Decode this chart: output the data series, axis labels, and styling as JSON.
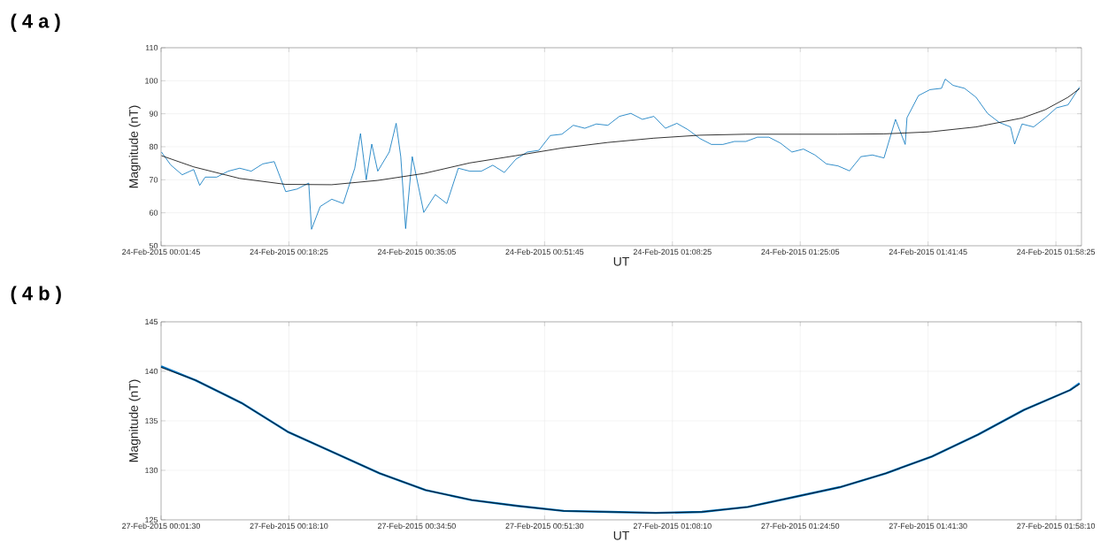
{
  "chart_data": [
    {
      "type": "line",
      "title": "( 4 a )",
      "xlabel": "UT",
      "ylabel": "Magnitude (nT)",
      "xlim": [
        "2015-02-24T00:01:45",
        "2015-02-24T02:01:45"
      ],
      "ylim": [
        50,
        110
      ],
      "grid": true,
      "xticks": [
        {
          "value": "2015-02-24T00:01:45",
          "label": "24-Feb-2015 00:01:45"
        },
        {
          "value": "2015-02-24T00:18:25",
          "label": "24-Feb-2015 00:18:25"
        },
        {
          "value": "2015-02-24T00:35:05",
          "label": "24-Feb-2015 00:35:05"
        },
        {
          "value": "2015-02-24T00:51:45",
          "label": "24-Feb-2015 00:51:45"
        },
        {
          "value": "2015-02-24T01:08:25",
          "label": "24-Feb-2015 01:08:25"
        },
        {
          "value": "2015-02-24T01:25:05",
          "label": "24-Feb-2015 01:25:05"
        },
        {
          "value": "2015-02-24T01:41:45",
          "label": "24-Feb-2015 01:41:45"
        },
        {
          "value": "2015-02-24T01:58:25",
          "label": "24-Feb-2015 01:58:25"
        }
      ],
      "yticks": [
        50,
        60,
        70,
        80,
        90,
        100,
        110
      ],
      "series": [
        {
          "color": "#0072bd",
          "x": [
            "2015-02-24T00:01:48",
            "2015-02-24T00:03:00",
            "2015-02-24T00:04:30",
            "2015-02-24T00:06:00",
            "2015-02-24T00:06:47",
            "2015-02-24T00:07:30",
            "2015-02-24T00:09:00",
            "2015-02-24T00:10:30",
            "2015-02-24T00:12:00",
            "2015-02-24T00:13:30",
            "2015-02-24T00:15:00",
            "2015-02-24T00:16:30",
            "2015-02-24T00:18:00",
            "2015-02-24T00:19:30",
            "2015-02-24T00:21:00",
            "2015-02-24T00:21:22",
            "2015-02-24T00:22:30",
            "2015-02-24T00:24:00",
            "2015-02-24T00:25:30",
            "2015-02-24T00:27:00",
            "2015-02-24T00:27:45",
            "2015-02-24T00:28:30",
            "2015-02-24T00:29:13",
            "2015-02-24T00:30:00",
            "2015-02-24T00:31:30",
            "2015-02-24T00:32:24",
            "2015-02-24T00:33:00",
            "2015-02-24T00:33:38",
            "2015-02-24T00:34:30",
            "2015-02-24T00:36:00",
            "2015-02-24T00:37:30",
            "2015-02-24T00:39:00",
            "2015-02-24T00:40:30",
            "2015-02-24T00:42:00",
            "2015-02-24T00:43:30",
            "2015-02-24T00:45:00",
            "2015-02-24T00:46:30",
            "2015-02-24T00:48:00",
            "2015-02-24T00:49:30",
            "2015-02-24T00:51:00",
            "2015-02-24T00:52:30",
            "2015-02-24T00:54:00",
            "2015-02-24T00:55:30",
            "2015-02-24T00:57:00",
            "2015-02-24T00:58:30",
            "2015-02-24T01:00:00",
            "2015-02-24T01:01:30",
            "2015-02-24T01:03:00",
            "2015-02-24T01:04:30",
            "2015-02-24T01:06:00",
            "2015-02-24T01:07:30",
            "2015-02-24T01:09:00",
            "2015-02-24T01:10:30",
            "2015-02-24T01:12:00",
            "2015-02-24T01:13:30",
            "2015-02-24T01:15:00",
            "2015-02-24T01:16:30",
            "2015-02-24T01:18:00",
            "2015-02-24T01:19:30",
            "2015-02-24T01:21:00",
            "2015-02-24T01:22:30",
            "2015-02-24T01:24:00",
            "2015-02-24T01:25:30",
            "2015-02-24T01:27:00",
            "2015-02-24T01:28:30",
            "2015-02-24T01:30:00",
            "2015-02-24T01:31:30",
            "2015-02-24T01:33:00",
            "2015-02-24T01:34:30",
            "2015-02-24T01:36:00",
            "2015-02-24T01:37:30",
            "2015-02-24T01:38:46",
            "2015-02-24T01:39:00",
            "2015-02-24T01:40:30",
            "2015-02-24T01:42:00",
            "2015-02-24T01:43:30",
            "2015-02-24T01:43:59",
            "2015-02-24T01:45:00",
            "2015-02-24T01:46:30",
            "2015-02-24T01:48:00",
            "2015-02-24T01:49:30",
            "2015-02-24T01:51:00",
            "2015-02-24T01:52:30",
            "2015-02-24T01:53:02",
            "2015-02-24T01:54:00",
            "2015-02-24T01:55:30",
            "2015-02-24T01:57:00",
            "2015-02-24T01:58:30",
            "2015-02-24T02:00:00",
            "2015-02-24T02:01:30"
          ],
          "values": [
            78.4,
            74.5,
            71.5,
            73.1,
            68.3,
            70.8,
            70.8,
            72.6,
            73.5,
            72.6,
            74.8,
            75.5,
            66.4,
            67.2,
            69,
            55,
            61.9,
            64.1,
            62.8,
            73.5,
            84,
            70,
            80.8,
            72.6,
            78.4,
            87.1,
            77,
            55.2,
            77,
            60.1,
            65.5,
            62.8,
            73.5,
            72.6,
            72.6,
            74.4,
            72.2,
            76.2,
            78.4,
            78.9,
            83.4,
            83.8,
            86.5,
            85.6,
            86.9,
            86.5,
            89.2,
            90.1,
            88.3,
            89.2,
            85.6,
            87.1,
            85.1,
            82.5,
            80.7,
            80.7,
            81.6,
            81.6,
            82.9,
            82.9,
            81.1,
            78.4,
            79.3,
            77.5,
            74.8,
            74.2,
            72.7,
            77,
            77.5,
            76.6,
            88.3,
            80.7,
            88.8,
            95.5,
            97.3,
            97.7,
            100.5,
            98.6,
            97.7,
            95,
            90.1,
            87.4,
            86,
            80.8,
            86.9,
            86,
            88.7,
            91.8,
            92.7,
            98.1
          ]
        },
        {
          "color": "#000000",
          "x": [
            "2015-02-24T00:01:48",
            "2015-02-24T00:06:00",
            "2015-02-24T00:12:00",
            "2015-02-24T00:18:00",
            "2015-02-24T00:24:00",
            "2015-02-24T00:30:00",
            "2015-02-24T00:36:00",
            "2015-02-24T00:42:00",
            "2015-02-24T00:48:00",
            "2015-02-24T00:54:00",
            "2015-02-24T01:00:00",
            "2015-02-24T01:06:00",
            "2015-02-24T01:12:00",
            "2015-02-24T01:18:00",
            "2015-02-24T01:24:00",
            "2015-02-24T01:30:00",
            "2015-02-24T01:36:00",
            "2015-02-24T01:42:00",
            "2015-02-24T01:48:00",
            "2015-02-24T01:54:00",
            "2015-02-24T01:57:00",
            "2015-02-24T02:00:00",
            "2015-02-24T02:01:30"
          ],
          "values": [
            77.3,
            73.9,
            70.4,
            68.6,
            68.5,
            69.8,
            71.9,
            75.1,
            77.3,
            79.6,
            81.3,
            82.6,
            83.5,
            83.8,
            83.8,
            83.8,
            83.9,
            84.5,
            86,
            88.7,
            91.2,
            95,
            97.6
          ]
        }
      ]
    },
    {
      "type": "line",
      "title": "( 4 b )",
      "xlabel": "UT",
      "ylabel": "Magnitude (nT)",
      "xlim": [
        "2015-02-27T00:01:30",
        "2015-02-27T02:01:30"
      ],
      "ylim": [
        125,
        145
      ],
      "grid": true,
      "xticks": [
        {
          "value": "2015-02-27T00:01:30",
          "label": "27-Feb-2015 00:01:30"
        },
        {
          "value": "2015-02-27T00:18:10",
          "label": "27-Feb-2015 00:18:10"
        },
        {
          "value": "2015-02-27T00:34:50",
          "label": "27-Feb-2015 00:34:50"
        },
        {
          "value": "2015-02-27T00:51:30",
          "label": "27-Feb-2015 00:51:30"
        },
        {
          "value": "2015-02-27T01:08:10",
          "label": "27-Feb-2015 01:08:10"
        },
        {
          "value": "2015-02-27T01:24:50",
          "label": "27-Feb-2015 01:24:50"
        },
        {
          "value": "2015-02-27T01:41:30",
          "label": "27-Feb-2015 01:41:30"
        },
        {
          "value": "2015-02-27T01:58:10",
          "label": "27-Feb-2015 01:58:10"
        }
      ],
      "yticks": [
        125,
        130,
        135,
        140,
        145
      ],
      "series": [
        {
          "color": "#0072bd",
          "x": [
            "2015-02-27T00:01:30",
            "2015-02-27T00:06:00",
            "2015-02-27T00:12:00",
            "2015-02-27T00:18:00",
            "2015-02-27T00:24:00",
            "2015-02-27T00:30:00",
            "2015-02-27T00:36:00",
            "2015-02-27T00:42:00",
            "2015-02-27T00:48:00",
            "2015-02-27T00:54:00",
            "2015-02-27T01:00:00",
            "2015-02-27T01:06:00",
            "2015-02-27T01:12:00",
            "2015-02-27T01:18:00",
            "2015-02-27T01:24:00",
            "2015-02-27T01:30:00",
            "2015-02-27T01:36:00",
            "2015-02-27T01:42:00",
            "2015-02-27T01:48:00",
            "2015-02-27T01:54:00",
            "2015-02-27T02:00:00",
            "2015-02-27T02:01:15"
          ],
          "values": [
            140.5,
            139.1,
            136.8,
            133.9,
            131.8,
            129.7,
            128.0,
            127.0,
            126.4,
            125.9,
            125.8,
            125.7,
            125.8,
            126.3,
            127.3,
            128.3,
            129.7,
            131.4,
            133.6,
            136.1,
            138.1,
            138.8
          ]
        },
        {
          "color": "#000000",
          "x": [
            "2015-02-27T00:01:30",
            "2015-02-27T00:06:00",
            "2015-02-27T00:12:00",
            "2015-02-27T00:18:00",
            "2015-02-27T00:24:00",
            "2015-02-27T00:30:00",
            "2015-02-27T00:36:00",
            "2015-02-27T00:42:00",
            "2015-02-27T00:48:00",
            "2015-02-27T00:54:00",
            "2015-02-27T01:00:00",
            "2015-02-27T01:06:00",
            "2015-02-27T01:12:00",
            "2015-02-27T01:18:00",
            "2015-02-27T01:24:00",
            "2015-02-27T01:30:00",
            "2015-02-27T01:36:00",
            "2015-02-27T01:42:00",
            "2015-02-27T01:48:00",
            "2015-02-27T01:54:00",
            "2015-02-27T02:00:00",
            "2015-02-27T02:01:15"
          ],
          "values": [
            140.4,
            139.1,
            136.8,
            133.9,
            131.8,
            129.7,
            128.0,
            127.0,
            126.4,
            125.9,
            125.8,
            125.7,
            125.8,
            126.3,
            127.3,
            128.3,
            129.7,
            131.4,
            133.6,
            136.1,
            138.1,
            138.7
          ]
        }
      ]
    }
  ]
}
